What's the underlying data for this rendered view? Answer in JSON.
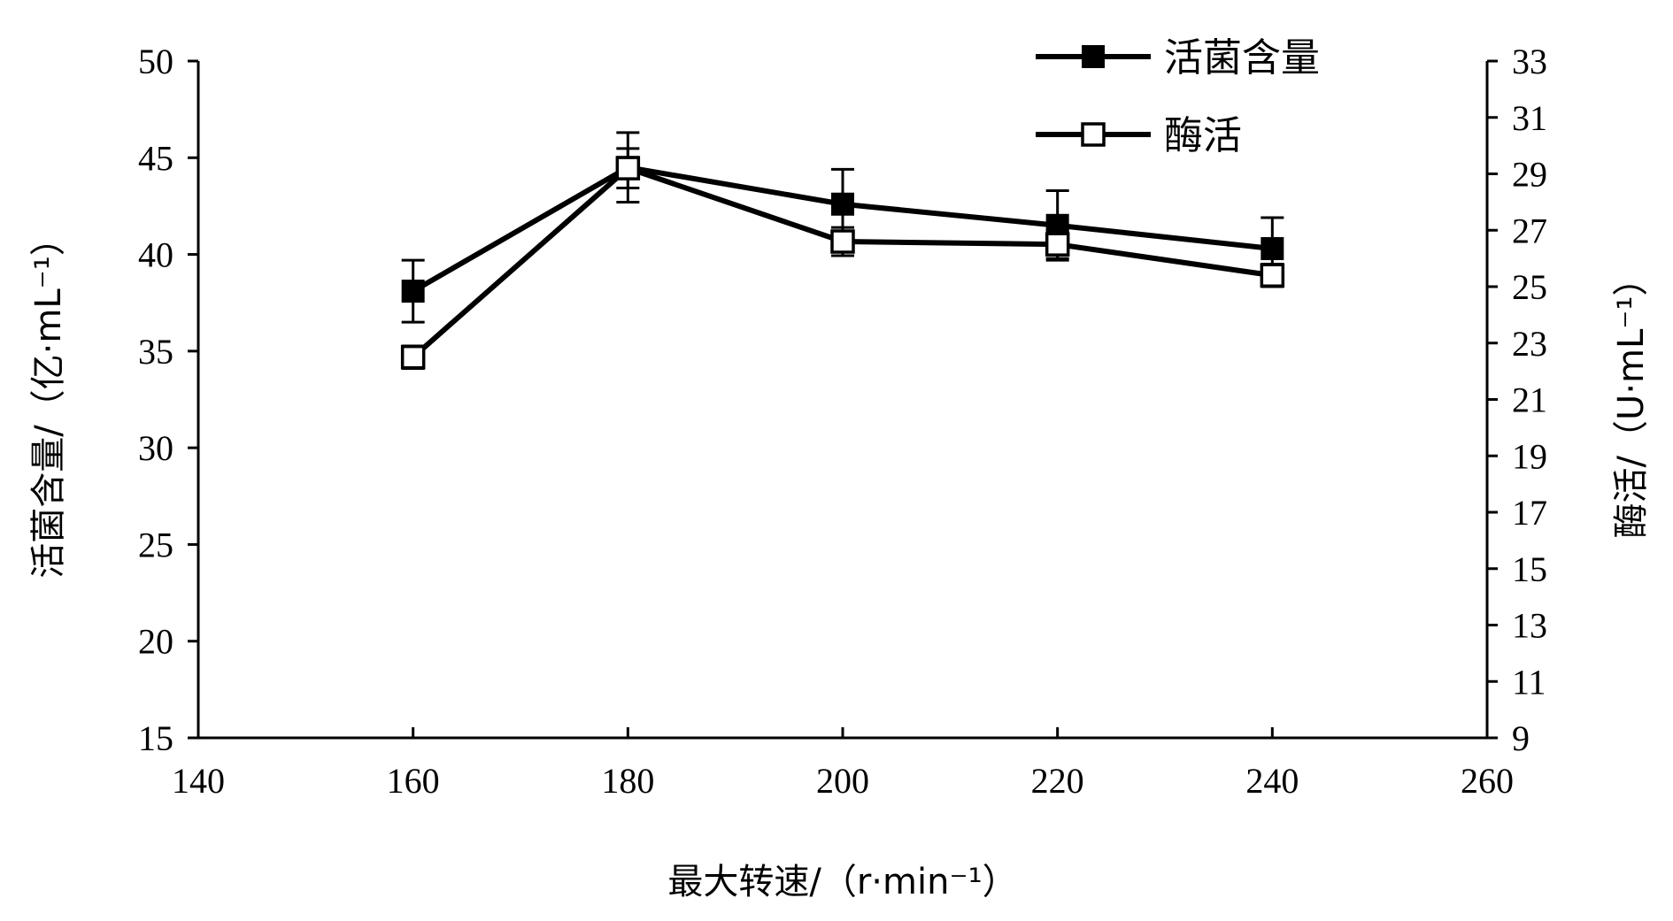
{
  "chart_data": {
    "type": "line",
    "x": [
      160,
      180,
      200,
      220,
      240
    ],
    "xlim": [
      140,
      260
    ],
    "xticks": [
      140,
      160,
      180,
      200,
      220,
      240,
      260
    ],
    "xlabel": "最大转速/（r·min⁻¹）",
    "ylim_left": [
      15,
      50
    ],
    "yticks_left": [
      15,
      20,
      25,
      30,
      35,
      40,
      45,
      50
    ],
    "ylabel_left": "活菌含量/（亿·mL⁻¹）",
    "ylim_right": [
      9,
      33
    ],
    "yticks_right": [
      9,
      11,
      13,
      15,
      17,
      19,
      21,
      23,
      25,
      27,
      29,
      31,
      33
    ],
    "ylabel_right": "酶活/（U·mL⁻¹）",
    "grid": false,
    "legend_position": "top-right",
    "series": [
      {
        "name": "活菌含量",
        "axis": "left",
        "marker": "filled-square",
        "color": "#000000",
        "values": [
          38.1,
          44.5,
          42.6,
          41.5,
          40.3
        ],
        "errors": [
          1.6,
          1.8,
          1.8,
          1.8,
          1.6
        ]
      },
      {
        "name": "酶活",
        "axis": "right",
        "marker": "open-square",
        "color": "#000000",
        "values": [
          22.5,
          29.2,
          26.6,
          26.5,
          25.4
        ],
        "errors": [
          0.4,
          0.7,
          0.5,
          0.5,
          0.4
        ]
      }
    ]
  }
}
